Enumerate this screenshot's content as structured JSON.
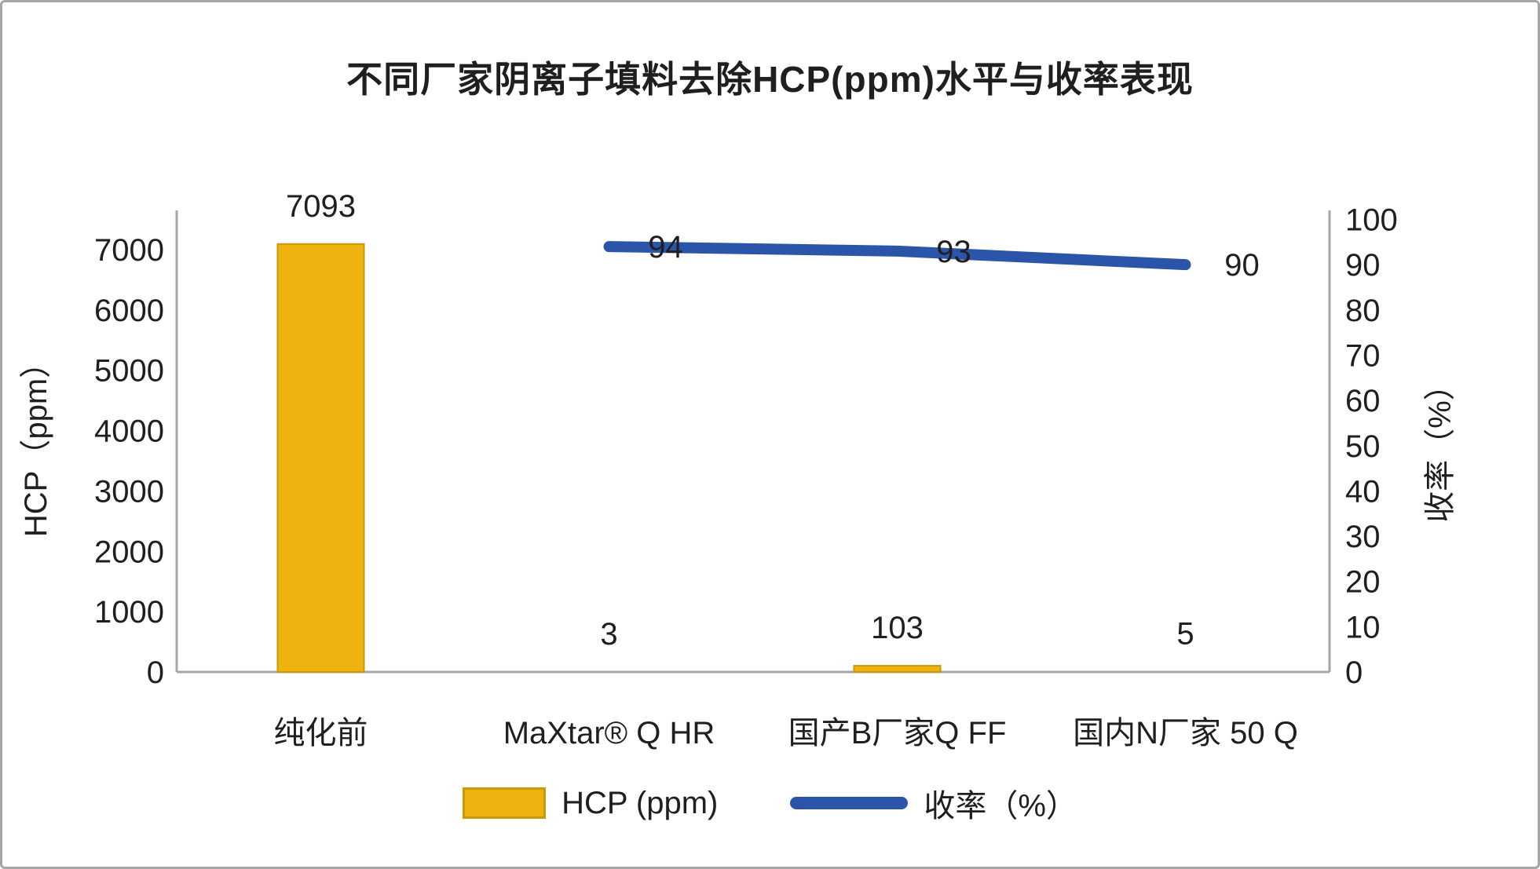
{
  "title": "不同厂家阴离子填料去除HCP(ppm)水平与收率表现",
  "colors": {
    "bar_fill": "#EFB310",
    "bar_border": "#C99A05",
    "line_blue": "#2B55A8",
    "axis_line": "#A6A6A6",
    "text": "#1F1F1F"
  },
  "chart_data": {
    "type": "bar",
    "subtype": "combo-bar-line-dual-axis",
    "title": "不同厂家阴离子填料去除HCP(ppm)水平与收率表现",
    "categories": [
      "纯化前",
      "MaXtar® Q HR",
      "国产B厂家Q FF",
      "国内N厂家 50 Q"
    ],
    "series": [
      {
        "name": "HCP (ppm)",
        "type": "bar",
        "axis": "left",
        "color": "#EFB310",
        "values": [
          7093,
          3,
          103,
          5
        ],
        "data_labels": [
          "7093",
          "3",
          "103",
          "5"
        ]
      },
      {
        "name": "收率（%）",
        "type": "line",
        "axis": "right",
        "color": "#2B55A8",
        "values": [
          null,
          94,
          93,
          90
        ],
        "data_labels": [
          "",
          "94",
          "93",
          "90"
        ]
      }
    ],
    "left_axis": {
      "label": "HCP（ppm）",
      "min": 0,
      "max": 7650,
      "ticks": [
        0,
        1000,
        2000,
        3000,
        4000,
        5000,
        6000,
        7000
      ]
    },
    "right_axis": {
      "label": "收率（%）",
      "min": 0,
      "max": 102,
      "ticks": [
        0,
        10,
        20,
        30,
        40,
        50,
        60,
        70,
        80,
        90,
        100
      ]
    },
    "grid": false,
    "legend_position": "bottom",
    "legend": [
      {
        "label": "HCP (ppm)",
        "swatch": "bar"
      },
      {
        "label": "收率（%）",
        "swatch": "line"
      }
    ]
  }
}
